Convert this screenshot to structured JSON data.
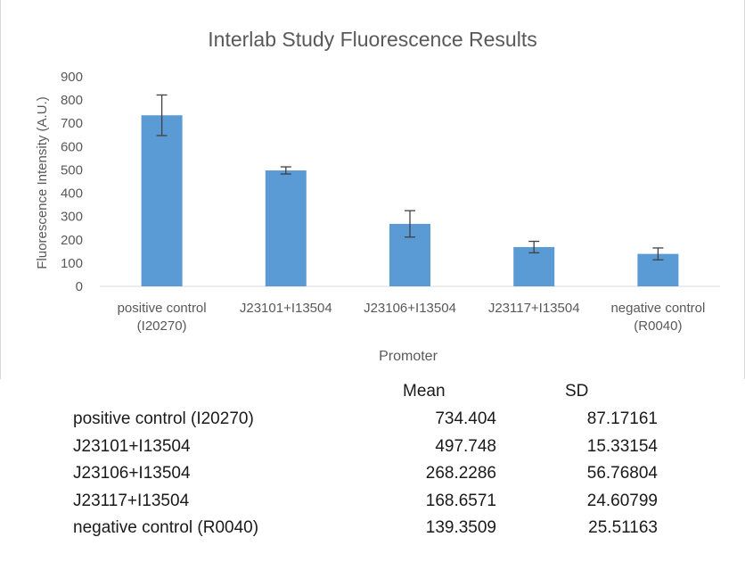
{
  "chart_data": {
    "type": "bar",
    "title": "Interlab Study Fluorescence Results",
    "xlabel": "Promoter",
    "ylabel": "Fluorescence Intensity (A.U.)",
    "ylim": [
      0,
      900
    ],
    "yticks": [
      0,
      100,
      200,
      300,
      400,
      500,
      600,
      700,
      800,
      900
    ],
    "categories": [
      [
        "positive control",
        "(I20270)"
      ],
      [
        "J23101+I13504"
      ],
      [
        "J23106+I13504"
      ],
      [
        "J23117+I13504"
      ],
      [
        "negative control",
        "(R0040)"
      ]
    ],
    "values": [
      734.404,
      497.748,
      268.2286,
      168.6571,
      139.3509
    ],
    "errors": [
      87.17161,
      15.33154,
      56.76804,
      24.60799,
      25.51163
    ],
    "bar_color": "#5b9bd5",
    "grid": false,
    "legend": "none"
  },
  "table": {
    "headers": {
      "mean": "Mean",
      "sd": "SD"
    },
    "rows": [
      {
        "label": "positive control (I20270)",
        "mean": "734.404",
        "sd": "87.17161"
      },
      {
        "label": "J23101+I13504",
        "mean": "497.748",
        "sd": "15.33154"
      },
      {
        "label": "J23106+I13504",
        "mean": "268.2286",
        "sd": "56.76804"
      },
      {
        "label": "J23117+I13504",
        "mean": "168.6571",
        "sd": "24.60799"
      },
      {
        "label": "negative control (R0040)",
        "mean": "139.3509",
        "sd": "25.51163"
      }
    ]
  }
}
